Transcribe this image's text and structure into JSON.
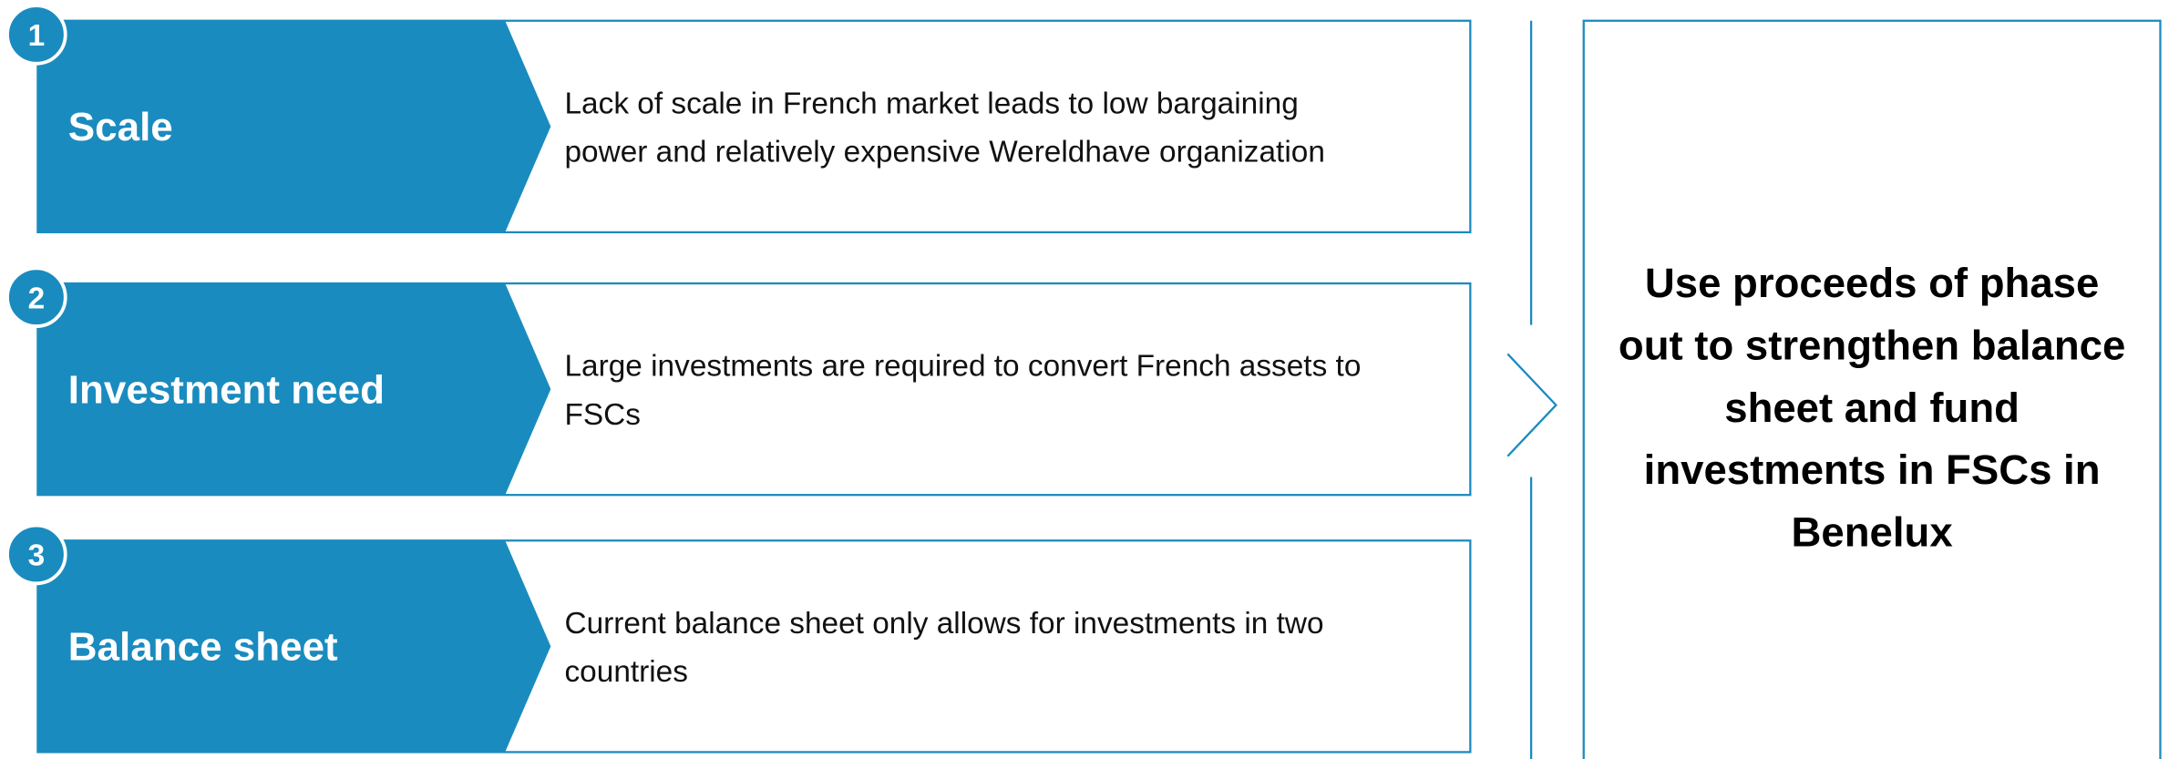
{
  "items": [
    {
      "number": "1",
      "title": "Scale",
      "description": "Lack of scale in French market leads to low bargaining power and relatively expensive Wereldhave organization"
    },
    {
      "number": "2",
      "title": "Investment need",
      "description": "Large investments are required to convert French assets to FSCs"
    },
    {
      "number": "3",
      "title": "Balance sheet",
      "description": "Current balance sheet only allows for investments in two countries"
    }
  ],
  "conclusion": "Use proceeds of phase out to strengthen balance sheet and fund investments in FSCs in Benelux"
}
